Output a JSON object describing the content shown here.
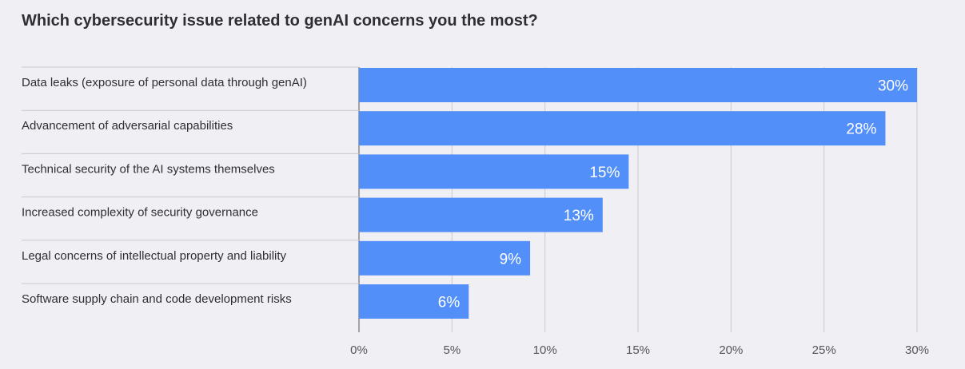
{
  "chart_data": {
    "type": "bar",
    "orientation": "horizontal",
    "title": "Which cybersecurity issue related to genAI concerns you the most?",
    "categories": [
      "Data leaks (exposure of personal data through genAI)",
      "Advancement of adversarial capabilities",
      "Technical security of the AI systems themselves",
      "Increased complexity of security governance",
      "Legal concerns of intellectual property and liability",
      "Software supply chain and code development risks"
    ],
    "values": [
      30,
      28.3,
      14.5,
      13.1,
      9.2,
      5.9
    ],
    "value_labels": [
      "30%",
      "28%",
      "15%",
      "13%",
      "9%",
      "6%"
    ],
    "xlim": [
      0,
      30
    ],
    "xticks": [
      0,
      5,
      10,
      15,
      20,
      25,
      30
    ],
    "xtick_labels": [
      "0%",
      "5%",
      "10%",
      "15%",
      "20%",
      "25%",
      "30%"
    ],
    "xlabel": "",
    "ylabel": "",
    "grid": true,
    "colors": {
      "bar": "#528ff9",
      "bar_label": "#ffffff",
      "grid": "#c9c9cf",
      "separator": "#c9c9cf",
      "text": "#2f2f33",
      "background": "#efeff4"
    }
  }
}
